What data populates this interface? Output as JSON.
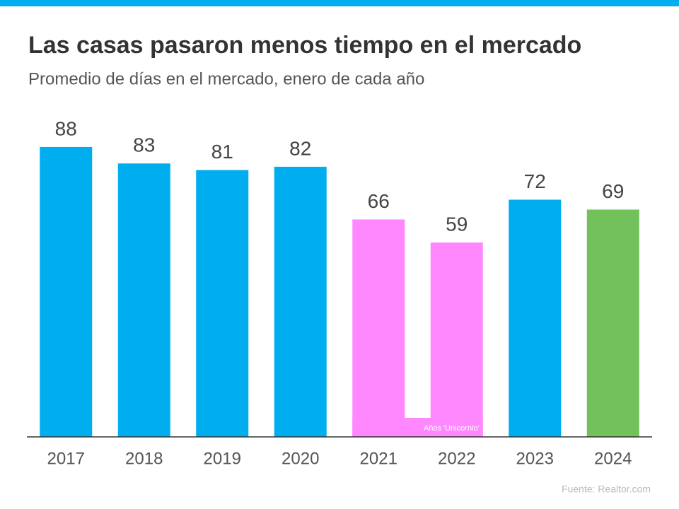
{
  "chart_data": {
    "type": "bar",
    "title": "Las casas pasaron menos tiempo en el mercado",
    "subtitle": "Promedio de días en el mercado, enero de cada año",
    "categories": [
      "2017",
      "2018",
      "2019",
      "2020",
      "2021",
      "2022",
      "2023",
      "2024"
    ],
    "values": [
      88,
      83,
      81,
      82,
      66,
      59,
      72,
      69
    ],
    "colors": [
      "#00aeef",
      "#00aeef",
      "#00aeef",
      "#00aeef",
      "#ff88ff",
      "#ff88ff",
      "#00aeef",
      "#72c15a"
    ],
    "ylim": [
      0,
      100
    ],
    "annotation": "Años 'Unicornio'",
    "source": "Fuente:  Realtor.com"
  }
}
